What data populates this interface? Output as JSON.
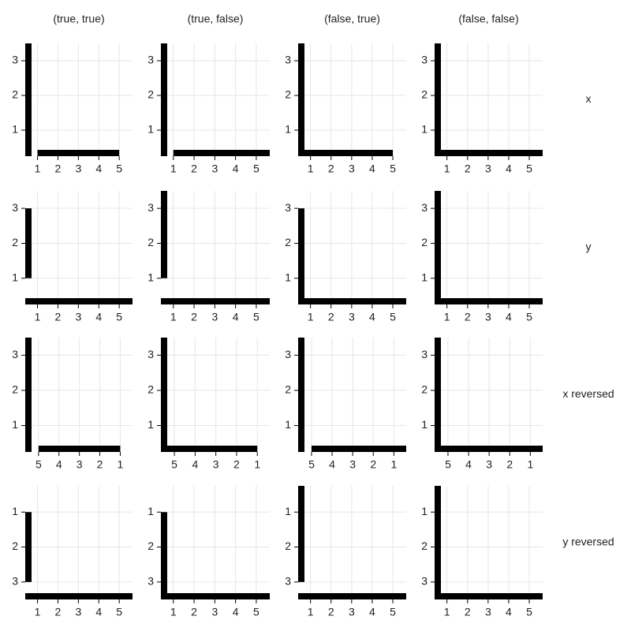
{
  "column_titles": [
    "(true, true)",
    "(true, false)",
    "(false, true)",
    "(false, false)"
  ],
  "row_labels": [
    "x",
    "y",
    "x reversed",
    "y reversed"
  ],
  "chart_data": [
    {
      "type": "axes",
      "xlim": [
        0.4,
        5.65
      ],
      "ylim": [
        0.25,
        3.5
      ],
      "xticks": [
        1,
        2,
        3,
        4,
        5
      ],
      "yticks": [
        1,
        2,
        3
      ],
      "x_reversed": false,
      "y_reversed": false,
      "x_trim": [
        true,
        true
      ],
      "y_trim": [
        false,
        false
      ],
      "grid": true
    },
    {
      "type": "axes",
      "xlim": [
        0.4,
        5.65
      ],
      "ylim": [
        0.25,
        3.5
      ],
      "xticks": [
        1,
        2,
        3,
        4,
        5
      ],
      "yticks": [
        1,
        2,
        3
      ],
      "x_reversed": false,
      "y_reversed": false,
      "x_trim": [
        true,
        false
      ],
      "y_trim": [
        false,
        false
      ],
      "grid": true
    },
    {
      "type": "axes",
      "xlim": [
        0.4,
        5.65
      ],
      "ylim": [
        0.25,
        3.5
      ],
      "xticks": [
        1,
        2,
        3,
        4,
        5
      ],
      "yticks": [
        1,
        2,
        3
      ],
      "x_reversed": false,
      "y_reversed": false,
      "x_trim": [
        false,
        true
      ],
      "y_trim": [
        false,
        false
      ],
      "grid": true
    },
    {
      "type": "axes",
      "xlim": [
        0.4,
        5.65
      ],
      "ylim": [
        0.25,
        3.5
      ],
      "xticks": [
        1,
        2,
        3,
        4,
        5
      ],
      "yticks": [
        1,
        2,
        3
      ],
      "x_reversed": false,
      "y_reversed": false,
      "x_trim": [
        false,
        false
      ],
      "y_trim": [
        false,
        false
      ],
      "grid": true
    },
    {
      "type": "axes",
      "xlim": [
        0.4,
        5.65
      ],
      "ylim": [
        0.25,
        3.5
      ],
      "xticks": [
        1,
        2,
        3,
        4,
        5
      ],
      "yticks": [
        1,
        2,
        3
      ],
      "x_reversed": false,
      "y_reversed": false,
      "x_trim": [
        false,
        false
      ],
      "y_trim": [
        true,
        true
      ],
      "grid": true
    },
    {
      "type": "axes",
      "xlim": [
        0.4,
        5.65
      ],
      "ylim": [
        0.25,
        3.5
      ],
      "xticks": [
        1,
        2,
        3,
        4,
        5
      ],
      "yticks": [
        1,
        2,
        3
      ],
      "x_reversed": false,
      "y_reversed": false,
      "x_trim": [
        false,
        false
      ],
      "y_trim": [
        true,
        false
      ],
      "grid": true
    },
    {
      "type": "axes",
      "xlim": [
        0.4,
        5.65
      ],
      "ylim": [
        0.25,
        3.5
      ],
      "xticks": [
        1,
        2,
        3,
        4,
        5
      ],
      "yticks": [
        1,
        2,
        3
      ],
      "x_reversed": false,
      "y_reversed": false,
      "x_trim": [
        false,
        false
      ],
      "y_trim": [
        false,
        true
      ],
      "grid": true
    },
    {
      "type": "axes",
      "xlim": [
        0.4,
        5.65
      ],
      "ylim": [
        0.25,
        3.5
      ],
      "xticks": [
        1,
        2,
        3,
        4,
        5
      ],
      "yticks": [
        1,
        2,
        3
      ],
      "x_reversed": false,
      "y_reversed": false,
      "x_trim": [
        false,
        false
      ],
      "y_trim": [
        false,
        false
      ],
      "grid": true
    },
    {
      "type": "axes",
      "xlim": [
        0.4,
        5.65
      ],
      "ylim": [
        0.25,
        3.5
      ],
      "xticks": [
        1,
        2,
        3,
        4,
        5
      ],
      "yticks": [
        1,
        2,
        3
      ],
      "x_reversed": true,
      "y_reversed": false,
      "x_trim": [
        true,
        true
      ],
      "y_trim": [
        false,
        false
      ],
      "grid": true
    },
    {
      "type": "axes",
      "xlim": [
        0.4,
        5.65
      ],
      "ylim": [
        0.25,
        3.5
      ],
      "xticks": [
        1,
        2,
        3,
        4,
        5
      ],
      "yticks": [
        1,
        2,
        3
      ],
      "x_reversed": true,
      "y_reversed": false,
      "x_trim": [
        true,
        false
      ],
      "y_trim": [
        false,
        false
      ],
      "grid": true
    },
    {
      "type": "axes",
      "xlim": [
        0.4,
        5.65
      ],
      "ylim": [
        0.25,
        3.5
      ],
      "xticks": [
        1,
        2,
        3,
        4,
        5
      ],
      "yticks": [
        1,
        2,
        3
      ],
      "x_reversed": true,
      "y_reversed": false,
      "x_trim": [
        false,
        true
      ],
      "y_trim": [
        false,
        false
      ],
      "grid": true
    },
    {
      "type": "axes",
      "xlim": [
        0.4,
        5.65
      ],
      "ylim": [
        0.25,
        3.5
      ],
      "xticks": [
        1,
        2,
        3,
        4,
        5
      ],
      "yticks": [
        1,
        2,
        3
      ],
      "x_reversed": true,
      "y_reversed": false,
      "x_trim": [
        false,
        false
      ],
      "y_trim": [
        false,
        false
      ],
      "grid": true
    },
    {
      "type": "axes",
      "xlim": [
        0.4,
        5.65
      ],
      "ylim": [
        0.25,
        3.5
      ],
      "xticks": [
        1,
        2,
        3,
        4,
        5
      ],
      "yticks": [
        1,
        2,
        3
      ],
      "x_reversed": false,
      "y_reversed": true,
      "x_trim": [
        false,
        false
      ],
      "y_trim": [
        true,
        true
      ],
      "grid": true
    },
    {
      "type": "axes",
      "xlim": [
        0.4,
        5.65
      ],
      "ylim": [
        0.25,
        3.5
      ],
      "xticks": [
        1,
        2,
        3,
        4,
        5
      ],
      "yticks": [
        1,
        2,
        3
      ],
      "x_reversed": false,
      "y_reversed": true,
      "x_trim": [
        false,
        false
      ],
      "y_trim": [
        true,
        false
      ],
      "grid": true
    },
    {
      "type": "axes",
      "xlim": [
        0.4,
        5.65
      ],
      "ylim": [
        0.25,
        3.5
      ],
      "xticks": [
        1,
        2,
        3,
        4,
        5
      ],
      "yticks": [
        1,
        2,
        3
      ],
      "x_reversed": false,
      "y_reversed": true,
      "x_trim": [
        false,
        false
      ],
      "y_trim": [
        false,
        true
      ],
      "grid": true
    },
    {
      "type": "axes",
      "xlim": [
        0.4,
        5.65
      ],
      "ylim": [
        0.25,
        3.5
      ],
      "xticks": [
        1,
        2,
        3,
        4,
        5
      ],
      "yticks": [
        1,
        2,
        3
      ],
      "x_reversed": false,
      "y_reversed": true,
      "x_trim": [
        false,
        false
      ],
      "y_trim": [
        false,
        false
      ],
      "grid": true
    }
  ]
}
